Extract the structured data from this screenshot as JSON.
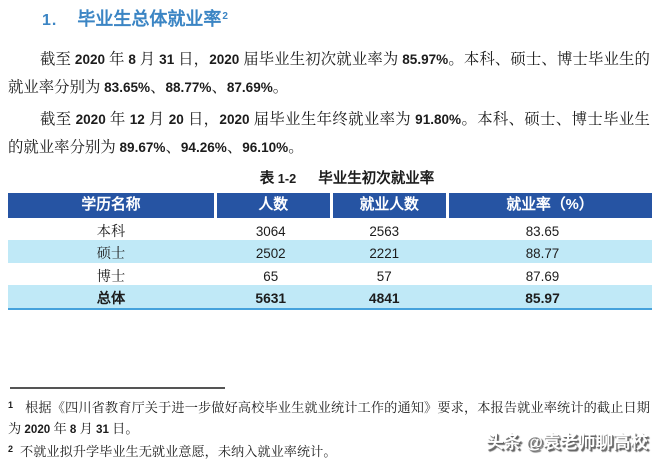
{
  "page": {
    "background": "#ffffff",
    "text_color": "#1c1c1c"
  },
  "heading": {
    "number": "1.",
    "title": "毕业生总体就业率",
    "superscript": "2",
    "color": "#3B85C4"
  },
  "paragraphs": [
    {
      "lines": [
        "截至 2020 年 8 月 31 日，2020 届毕业生初次就业率为 85.97%。本科、硕士、博士毕业生的",
        "就业率分别为 83.65%、88.77%、87.69%。"
      ]
    },
    {
      "lines": [
        "截至 2020 年 12 月 20 日，2020 届毕业生年终就业率为 91.80%。本科、硕士、博士毕业生",
        "的就业率分别为 89.67%、94.26%、96.10%。"
      ]
    }
  ],
  "table": {
    "caption_label": "表 1-2",
    "caption_title": "毕业生初次就业率",
    "columns": [
      "学历名称",
      "人数",
      "就业人数",
      "就业率（%）"
    ],
    "rows": [
      {
        "name": "本科",
        "count": "3064",
        "employed": "2563",
        "rate": "83.65"
      },
      {
        "name": "硕士",
        "count": "2502",
        "employed": "2221",
        "rate": "88.77"
      },
      {
        "name": "博士",
        "count": "65",
        "employed": "57",
        "rate": "87.69"
      },
      {
        "name": "总体",
        "count": "5631",
        "employed": "4841",
        "rate": "85.97"
      }
    ],
    "colors": {
      "header_background": "#2654A3",
      "header_text": "#ffffff",
      "alt_row_background": "#c0e9f7",
      "bottom_border": "#46a2dc"
    }
  },
  "footnotes": [
    {
      "marker": "1",
      "lines": [
        "根据《四川省教育厅关于进一步做好高校毕业生就业统计工作的通知》要求，本报告就业率统计的截止日期",
        "为 2020 年 8 月 31 日。"
      ]
    },
    {
      "marker": "2",
      "lines": [
        "不就业拟升学毕业生无就业意愿，未纳入就业率统计。"
      ]
    }
  ],
  "watermark": {
    "text": "头条 @袁老师聊高校"
  }
}
